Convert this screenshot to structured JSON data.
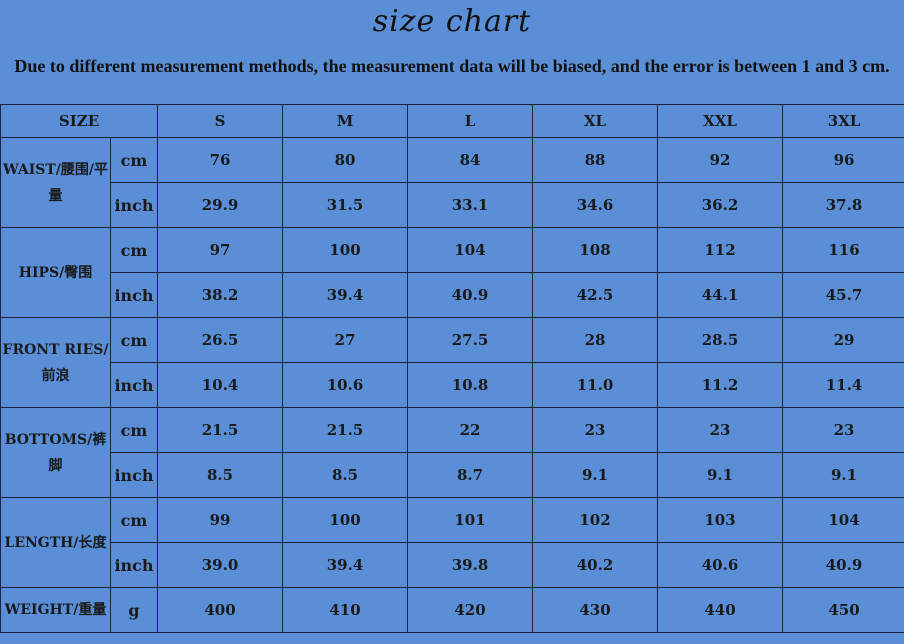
{
  "title": "size chart",
  "note": "Due to different measurement methods, the measurement data will be biased, and the error is between 1 and 3 cm.",
  "header": {
    "size": "SIZE",
    "sizes": [
      "S",
      "M",
      "L",
      "XL",
      "XXL",
      "3XL"
    ]
  },
  "rows": [
    {
      "label": "WAISTR/腰围/平量",
      "units": [
        {
          "unit": "cm",
          "values": [
            "76",
            "80",
            "84",
            "88",
            "92",
            "96"
          ]
        },
        {
          "unit": "inch",
          "values": [
            "29.9",
            "31.5",
            "33.1",
            "34.6",
            "36.2",
            "37.8"
          ]
        }
      ]
    },
    {
      "label": "HIPS/臀围",
      "units": [
        {
          "unit": "cm",
          "values": [
            "97",
            "100",
            "104",
            "108",
            "112",
            "116"
          ]
        },
        {
          "unit": "inch",
          "values": [
            "38.2",
            "39.4",
            "40.9",
            "42.5",
            "44.1",
            "45.7"
          ]
        }
      ]
    },
    {
      "label": "FRONT RIES/前浪",
      "units": [
        {
          "unit": "cm",
          "values": [
            "26.5",
            "27",
            "27.5",
            "28",
            "28.5",
            "29"
          ]
        },
        {
          "unit": "inch",
          "values": [
            "10.4",
            "10.6",
            "10.8",
            "11.0",
            "11.2",
            "11.4"
          ]
        }
      ]
    },
    {
      "label": "BOTTOMS/裤脚",
      "units": [
        {
          "unit": "cm",
          "values": [
            "21.5",
            "21.5",
            "22",
            "23",
            "23",
            "23"
          ]
        },
        {
          "unit": "inch",
          "values": [
            "8.5",
            "8.5",
            "8.7",
            "9.1",
            "9.1",
            "9.1"
          ]
        }
      ]
    },
    {
      "label": "LENGTH/长度",
      "units": [
        {
          "unit": "cm",
          "values": [
            "99",
            "100",
            "101",
            "102",
            "103",
            "104"
          ]
        },
        {
          "unit": "inch",
          "values": [
            "39.0",
            "39.4",
            "39.8",
            "40.2",
            "40.6",
            "40.9"
          ]
        }
      ]
    },
    {
      "label": "WEIGHT/重量",
      "units": [
        {
          "unit": "g",
          "values": [
            "400",
            "410",
            "420",
            "430",
            "440",
            "450"
          ]
        }
      ]
    }
  ]
}
